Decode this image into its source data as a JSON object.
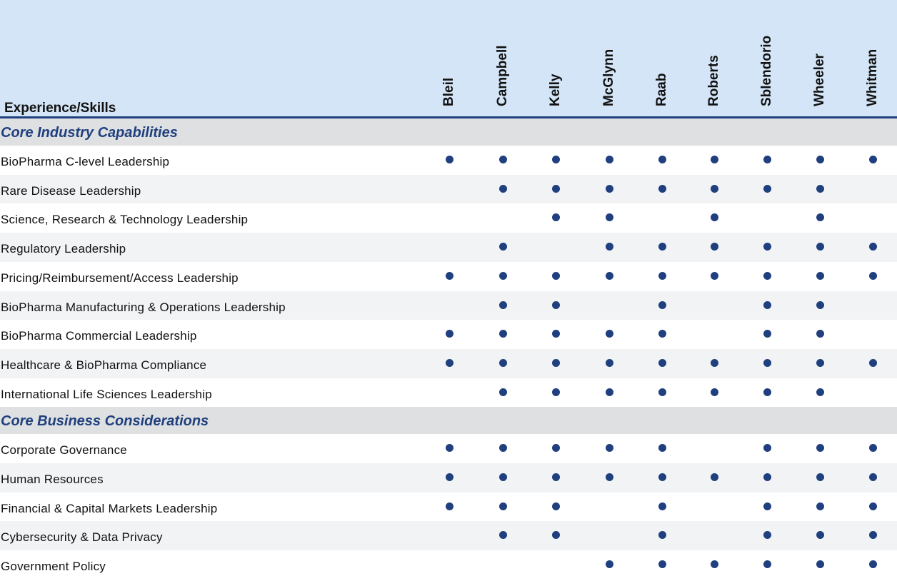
{
  "header": {
    "title": "Experience/Skills",
    "directors": [
      "Bleil",
      "Campbell",
      "Kelly",
      "McGlynn",
      "Raab",
      "Roberts",
      "Sblendorio",
      "Wheeler",
      "Whitman"
    ]
  },
  "sections": [
    {
      "title": "Core Industry Capabilities",
      "rows": [
        {
          "label": "BioPharma C-level Leadership",
          "marks": [
            1,
            1,
            1,
            1,
            1,
            1,
            1,
            1,
            1
          ]
        },
        {
          "label": "Rare Disease Leadership",
          "marks": [
            0,
            1,
            1,
            1,
            1,
            1,
            1,
            1,
            0
          ]
        },
        {
          "label": "Science, Research & Technology Leadership",
          "marks": [
            0,
            0,
            1,
            1,
            0,
            1,
            0,
            1,
            0
          ]
        },
        {
          "label": "Regulatory Leadership",
          "marks": [
            0,
            1,
            0,
            1,
            1,
            1,
            1,
            1,
            1
          ]
        },
        {
          "label": "Pricing/Reimbursement/Access Leadership",
          "marks": [
            1,
            1,
            1,
            1,
            1,
            1,
            1,
            1,
            1
          ]
        },
        {
          "label": "BioPharma Manufacturing & Operations Leadership",
          "marks": [
            0,
            1,
            1,
            0,
            1,
            0,
            1,
            1,
            0
          ]
        },
        {
          "label": "BioPharma Commercial Leadership",
          "marks": [
            1,
            1,
            1,
            1,
            1,
            0,
            1,
            1,
            0
          ]
        },
        {
          "label": "Healthcare & BioPharma Compliance",
          "marks": [
            1,
            1,
            1,
            1,
            1,
            1,
            1,
            1,
            1
          ]
        },
        {
          "label": "International Life Sciences Leadership",
          "marks": [
            0,
            1,
            1,
            1,
            1,
            1,
            1,
            1,
            0
          ]
        }
      ]
    },
    {
      "title": "Core Business Considerations",
      "rows": [
        {
          "label": "Corporate Governance",
          "marks": [
            1,
            1,
            1,
            1,
            1,
            0,
            1,
            1,
            1
          ]
        },
        {
          "label": "Human Resources",
          "marks": [
            1,
            1,
            1,
            1,
            1,
            1,
            1,
            1,
            1
          ]
        },
        {
          "label": "Financial & Capital Markets Leadership",
          "marks": [
            1,
            1,
            1,
            0,
            1,
            0,
            1,
            1,
            1
          ]
        },
        {
          "label": "Cybersecurity & Data Privacy",
          "marks": [
            0,
            1,
            1,
            0,
            1,
            0,
            1,
            1,
            1
          ]
        },
        {
          "label": "Government Policy",
          "marks": [
            0,
            0,
            0,
            1,
            1,
            1,
            1,
            1,
            1
          ]
        }
      ]
    }
  ]
}
